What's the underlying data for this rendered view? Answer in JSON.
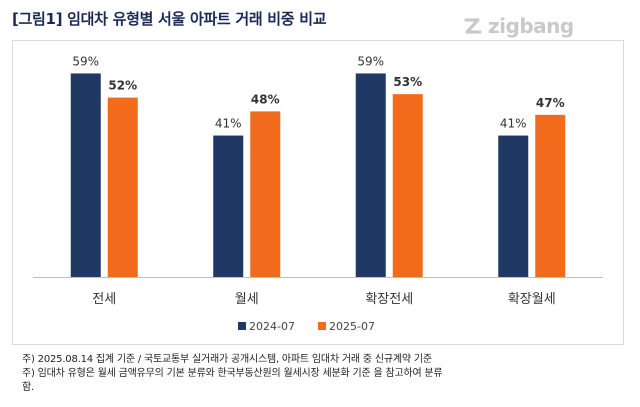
{
  "header": {
    "title": "[그림1] 임대차 유형별 서울 아파트 거래 비중 비교",
    "logo_text": "zigbang"
  },
  "chart_data": {
    "type": "bar",
    "categories": [
      "전세",
      "월세",
      "확장전세",
      "확장월세"
    ],
    "series": [
      {
        "name": "2024-07",
        "color": "#1f3864",
        "values": [
          59,
          41,
          59,
          41
        ],
        "labels": [
          "59%",
          "41%",
          "59%",
          "41%"
        ]
      },
      {
        "name": "2025-07",
        "color": "#f26b1d",
        "values": [
          52,
          48,
          53,
          47
        ],
        "labels": [
          "52%",
          "48%",
          "53%",
          "47%"
        ]
      }
    ],
    "ylim": [
      0,
      70
    ],
    "legend_position": "bottom",
    "grid": false
  },
  "footnotes": [
    "주) 2025.08.14 집계 기준 / 국토교통부 실거래가 공개시스템, 아파트 임대차 거래 중 신규계약 기준",
    "주) 임대차 유형은 월세 금액유무의 기본 분류와 한국부동산원의 월세시장 세분화 기준 을 참고하여 분류",
    "함."
  ]
}
